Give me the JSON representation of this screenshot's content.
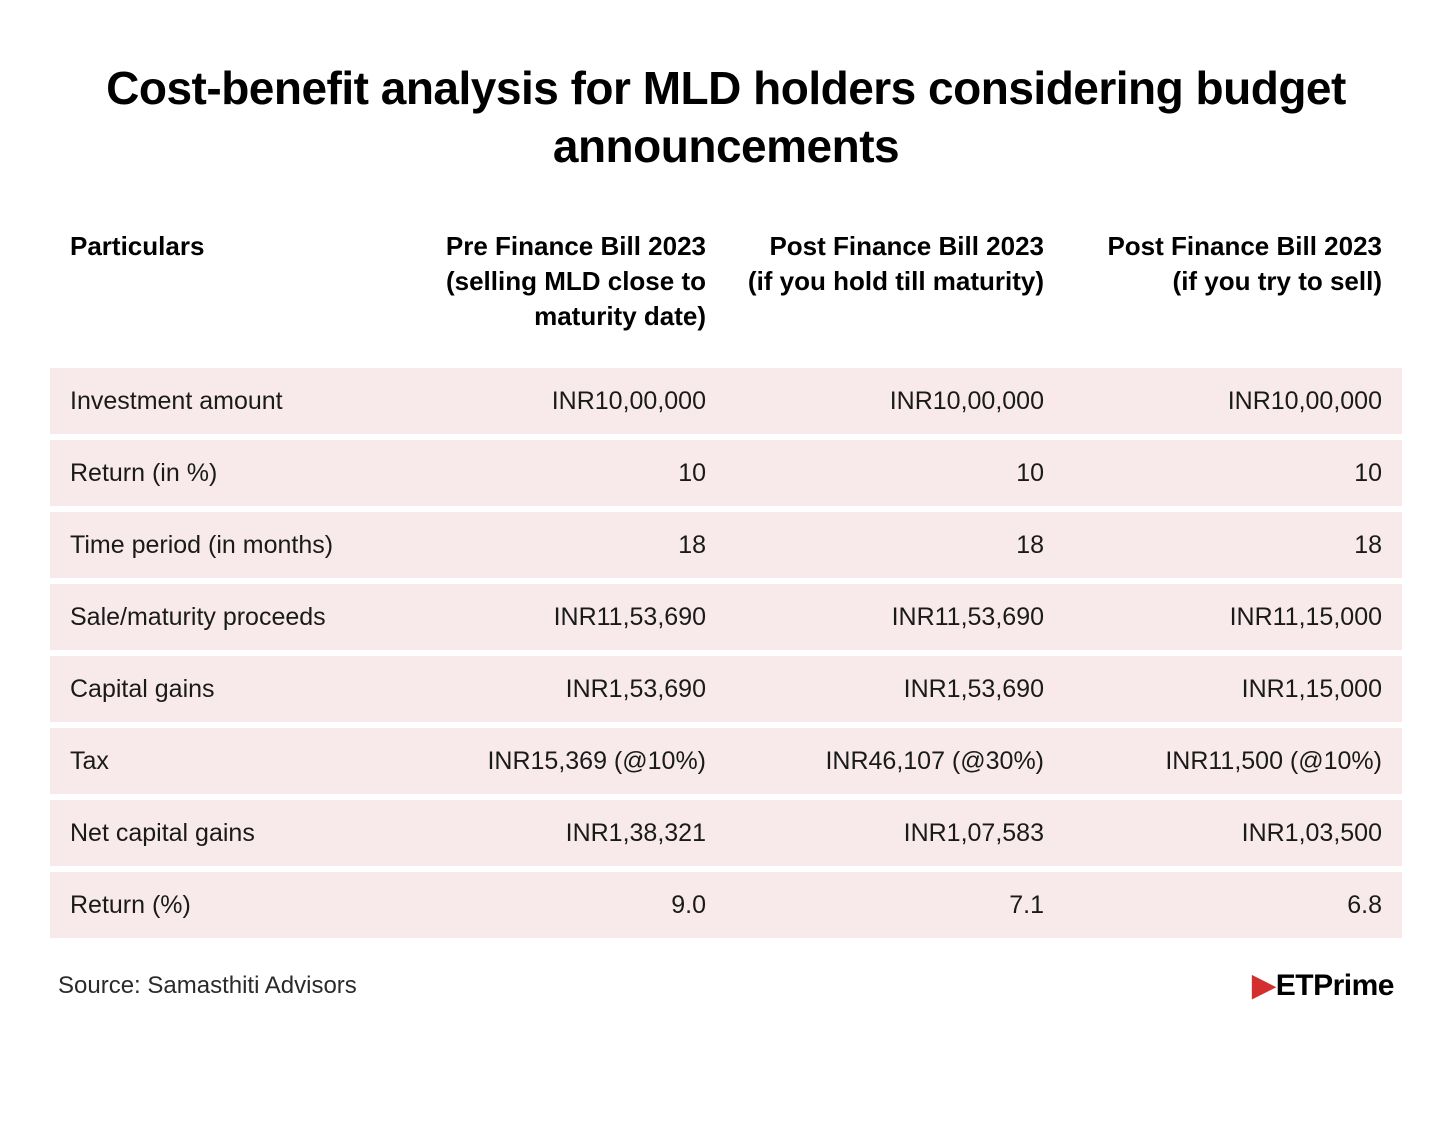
{
  "title": "Cost-benefit analysis for MLD holders considering budget announcements",
  "columns": {
    "particulars": "Particulars",
    "col1": "Pre Finance Bill 2023 (selling MLD close to maturity date)",
    "col2": "Post Finance Bill 2023 (if you hold till maturity)",
    "col3": "Post Finance Bill 2023 (if you try to sell)"
  },
  "rows": [
    {
      "label": "Investment amount",
      "col1": "INR10,00,000",
      "col2": "INR10,00,000",
      "col3": "INR10,00,000"
    },
    {
      "label": "Return (in %)",
      "col1": "10",
      "col2": "10",
      "col3": "10"
    },
    {
      "label": "Time period (in months)",
      "col1": "18",
      "col2": "18",
      "col3": "18"
    },
    {
      "label": "Sale/maturity proceeds",
      "col1": "INR11,53,690",
      "col2": "INR11,53,690",
      "col3": "INR11,15,000"
    },
    {
      "label": "Capital gains",
      "col1": "INR1,53,690",
      "col2": "INR1,53,690",
      "col3": "INR1,15,000"
    },
    {
      "label": "Tax",
      "col1": "INR15,369 (@10%)",
      "col2": "INR46,107 (@30%)",
      "col3": "INR11,500 (@10%)"
    },
    {
      "label": "Net capital gains",
      "col1": "INR1,38,321",
      "col2": "INR1,07,583",
      "col3": "INR1,03,500"
    },
    {
      "label": "Return (%)",
      "col1": "9.0",
      "col2": "7.1",
      "col3": "6.8"
    }
  ],
  "footer": {
    "source": "Source: Samasthiti Advisors",
    "logo_text": "ETPrime"
  },
  "styling": {
    "row_bg": "#f8eaea",
    "text_color": "#000000",
    "body_bg": "#ffffff",
    "logo_accent": "#d32f2f",
    "title_fontsize": 46,
    "header_fontsize": 26,
    "cell_fontsize": 25,
    "source_fontsize": 24
  }
}
